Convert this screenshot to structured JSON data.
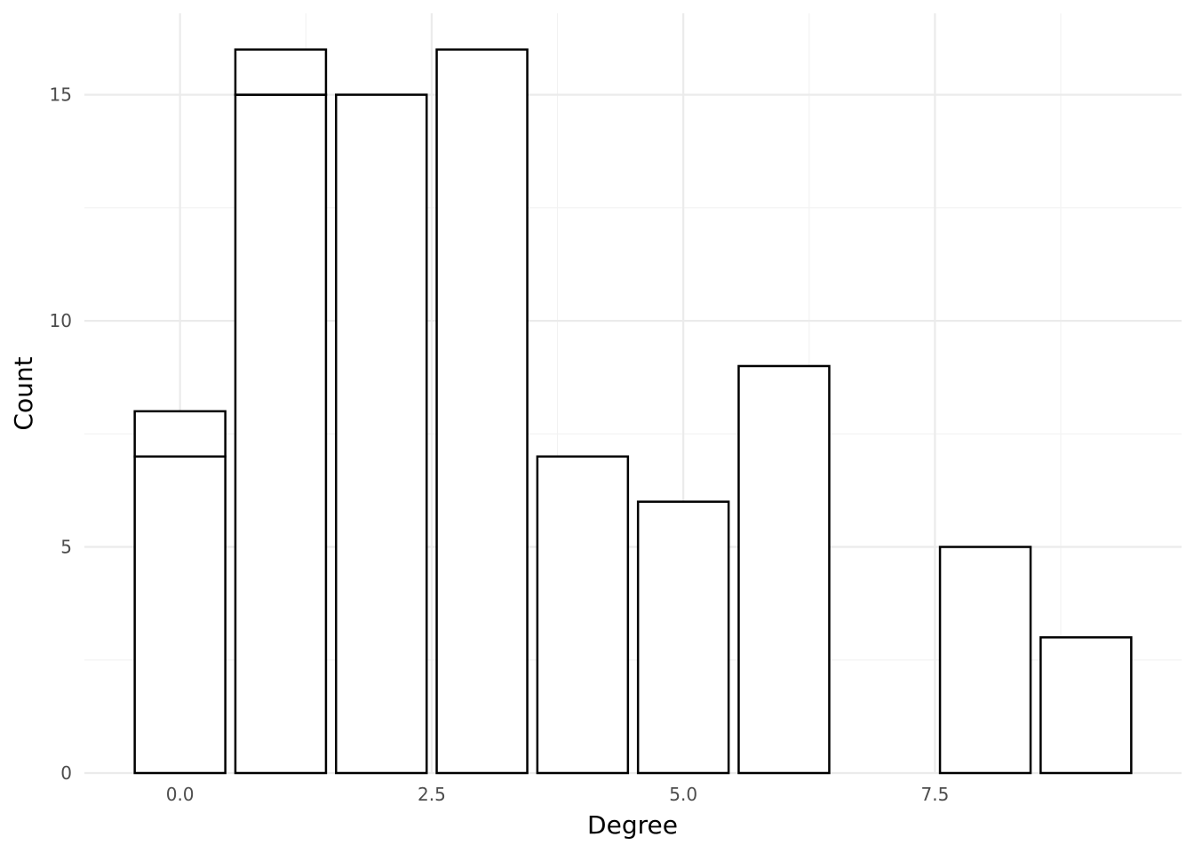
{
  "chart_data": {
    "type": "bar",
    "title": "",
    "xlabel": "Degree",
    "ylabel": "Count",
    "xlim": [
      -0.95,
      9.95
    ],
    "ylim": [
      0,
      16.8
    ],
    "x_ticks": [
      0.0,
      2.5,
      5.0,
      7.5
    ],
    "x_tick_labels": [
      "0.0",
      "2.5",
      "5.0",
      "7.5"
    ],
    "y_ticks": [
      0,
      5,
      10,
      15
    ],
    "y_tick_labels": [
      "0",
      "5",
      "10",
      "15"
    ],
    "grid": true,
    "bar_width": 0.9,
    "stack_segments": [
      {
        "x": 0,
        "lower": 0,
        "upper": 7
      },
      {
        "x": 0,
        "lower": 7,
        "upper": 8
      },
      {
        "x": 1,
        "lower": 0,
        "upper": 15
      },
      {
        "x": 1,
        "lower": 15,
        "upper": 16
      },
      {
        "x": 2,
        "lower": 0,
        "upper": 15
      },
      {
        "x": 3,
        "lower": 0,
        "upper": 16
      },
      {
        "x": 4,
        "lower": 0,
        "upper": 7
      },
      {
        "x": 5,
        "lower": 0,
        "upper": 6
      },
      {
        "x": 6,
        "lower": 0,
        "upper": 9
      },
      {
        "x": 8,
        "lower": 0,
        "upper": 5
      },
      {
        "x": 9,
        "lower": 0,
        "upper": 3
      }
    ],
    "colors": {
      "fill": "#ffffff",
      "outline": "#000000",
      "grid": "#ebebeb"
    }
  }
}
